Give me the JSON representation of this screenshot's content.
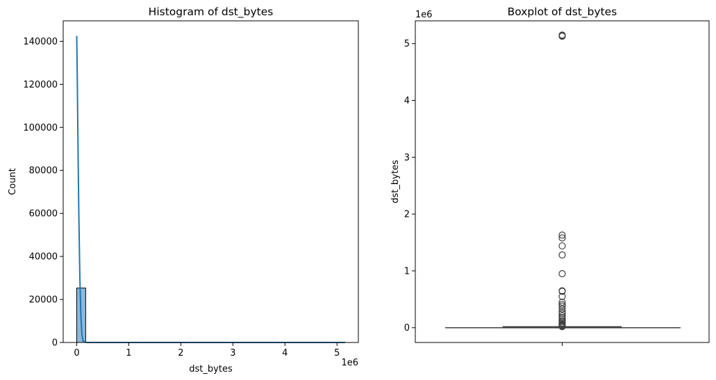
{
  "chart_data": [
    {
      "type": "bar",
      "title": "Histogram of dst_bytes",
      "xlabel": "dst_bytes",
      "ylabel": "Count",
      "x_offset_label": "1e6",
      "xlim": [
        -0.26,
        5.41
      ],
      "ylim": [
        0,
        149500
      ],
      "x_ticks": [
        0,
        1,
        2,
        3,
        4,
        5
      ],
      "y_ticks": [
        0,
        20000,
        40000,
        60000,
        80000,
        100000,
        120000,
        140000
      ],
      "bins": [
        {
          "x0": 0.0,
          "x1": 0.172,
          "count": 25300
        },
        {
          "x0": 0.172,
          "x1": 5.15,
          "count": 0
        }
      ],
      "kde": {
        "x": [
          0.0,
          0.012,
          0.025,
          0.04,
          0.06,
          0.08,
          0.1,
          0.12,
          0.15,
          0.2,
          0.5,
          1.0,
          2.0,
          3.0,
          4.0,
          5.15
        ],
        "y": [
          142500,
          120000,
          90000,
          60000,
          30000,
          12000,
          3500,
          900,
          200,
          0,
          0,
          0,
          0,
          0,
          0,
          0
        ]
      },
      "bar_color": "#8eb8dc",
      "bar_edge_color": "#000000",
      "kde_color": "#1f77b4",
      "grid": false
    },
    {
      "type": "box",
      "title": "Boxplot of dst_bytes",
      "ylabel": "dst_bytes",
      "y_offset_label": "1e6",
      "ylim": [
        -0.26,
        5.4
      ],
      "y_ticks": [
        0,
        1,
        2,
        3,
        4,
        5
      ],
      "box": {
        "whisker_low": 0,
        "q1": 0,
        "median": 0,
        "q3": 0.005,
        "whisker_high": 0.012
      },
      "outliers": [
        5.15,
        5.14,
        5.13,
        1.63,
        1.58,
        1.44,
        1.28,
        0.95,
        0.65,
        0.64,
        0.55,
        0.45,
        0.41,
        0.38,
        0.33,
        0.28,
        0.25,
        0.21,
        0.18,
        0.15,
        0.12,
        0.1,
        0.08,
        0.06,
        0.05,
        0.04,
        0.03,
        0.02
      ],
      "color": "#3f3f3f",
      "grid": false
    }
  ]
}
